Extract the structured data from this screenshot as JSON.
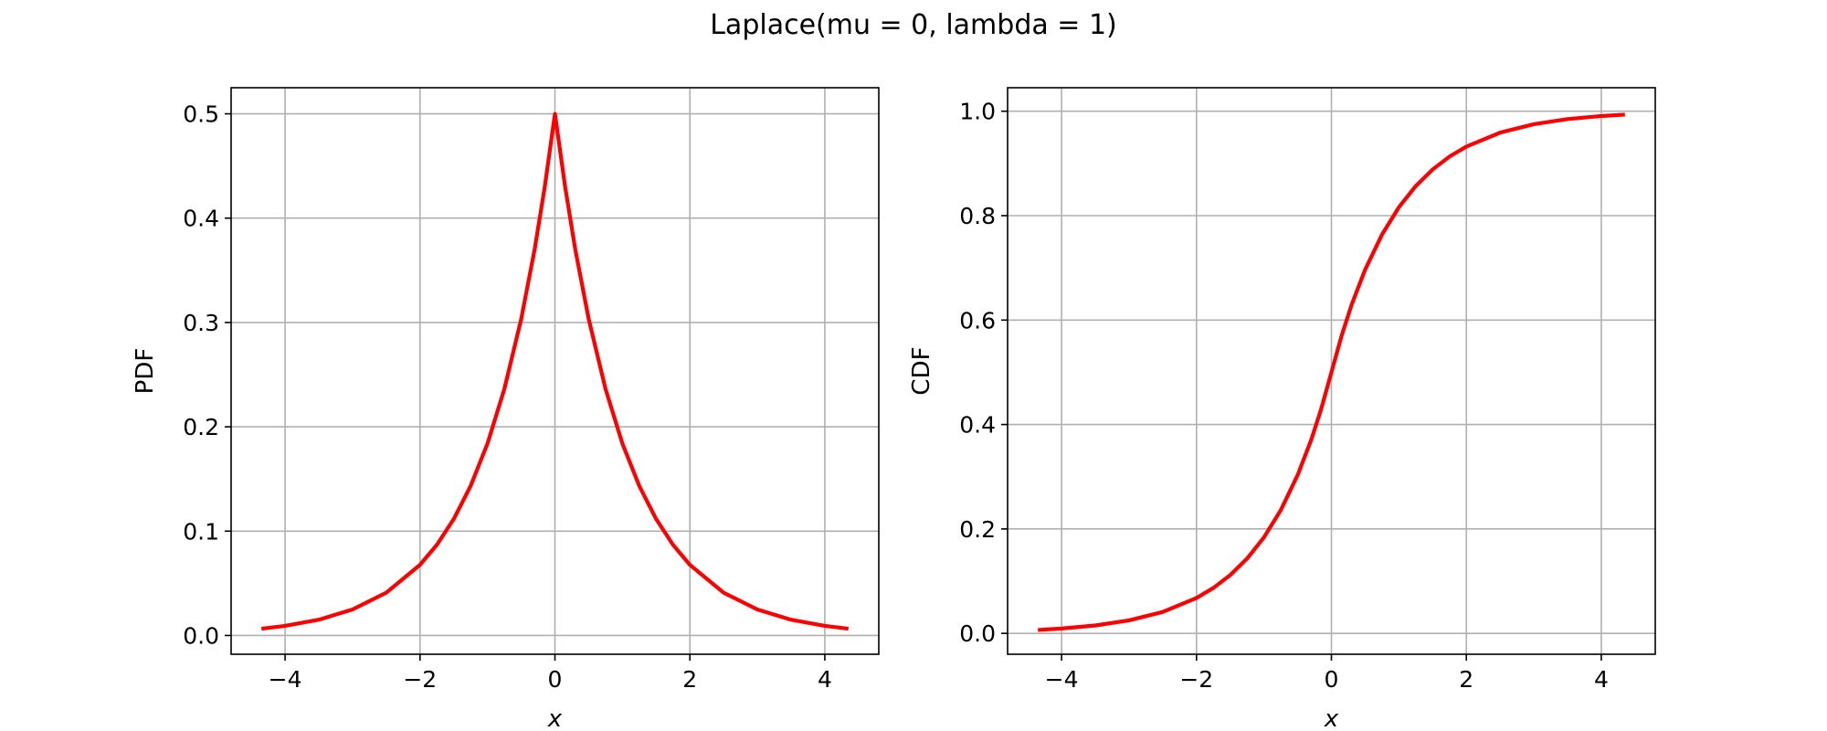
{
  "figure": {
    "suptitle": "Laplace(mu = 0, lambda = 1)"
  },
  "colors": {
    "line": "#ff0000",
    "grid": "#b0b0b0",
    "axes": "#000000",
    "background": "#ffffff"
  },
  "chart_data": [
    {
      "type": "line",
      "title": "",
      "xlabel": "x",
      "ylabel": "PDF",
      "xlim": [
        -4.8,
        4.8
      ],
      "ylim": [
        -0.018,
        0.525
      ],
      "xticks": [
        -4,
        -2,
        0,
        2,
        4
      ],
      "xtick_labels": [
        "−4",
        "−2",
        "0",
        "2",
        "4"
      ],
      "yticks": [
        0.0,
        0.1,
        0.2,
        0.3,
        0.4,
        0.5
      ],
      "ytick_labels": [
        "0.0",
        "0.1",
        "0.2",
        "0.3",
        "0.4",
        "0.5"
      ],
      "grid": true,
      "series": [
        {
          "x": [
            -4.35,
            -4.0,
            -3.5,
            -3.0,
            -2.5,
            -2.0,
            -1.75,
            -1.5,
            -1.25,
            -1.0,
            -0.75,
            -0.5,
            -0.3,
            -0.15,
            0.0,
            0.15,
            0.3,
            0.5,
            0.75,
            1.0,
            1.25,
            1.5,
            1.75,
            2.0,
            2.5,
            3.0,
            3.5,
            4.0,
            4.35
          ],
          "y": [
            0.0065,
            0.0092,
            0.0151,
            0.0249,
            0.041,
            0.0677,
            0.0869,
            0.1116,
            0.1433,
            0.1839,
            0.2362,
            0.3033,
            0.3704,
            0.4304,
            0.5,
            0.4304,
            0.3704,
            0.3033,
            0.2362,
            0.1839,
            0.1433,
            0.1116,
            0.0869,
            0.0677,
            0.041,
            0.0249,
            0.0151,
            0.0092,
            0.0065
          ]
        }
      ]
    },
    {
      "type": "line",
      "title": "",
      "xlabel": "x",
      "ylabel": "CDF",
      "xlim": [
        -4.8,
        4.8
      ],
      "ylim": [
        -0.04,
        1.045
      ],
      "xticks": [
        -4,
        -2,
        0,
        2,
        4
      ],
      "xtick_labels": [
        "−4",
        "−2",
        "0",
        "2",
        "4"
      ],
      "yticks": [
        0.0,
        0.2,
        0.4,
        0.6,
        0.8,
        1.0
      ],
      "ytick_labels": [
        "0.0",
        "0.2",
        "0.4",
        "0.6",
        "0.8",
        "1.0"
      ],
      "grid": true,
      "series": [
        {
          "x": [
            -4.35,
            -4.0,
            -3.5,
            -3.0,
            -2.5,
            -2.0,
            -1.75,
            -1.5,
            -1.25,
            -1.0,
            -0.75,
            -0.5,
            -0.3,
            -0.15,
            0.0,
            0.15,
            0.3,
            0.5,
            0.75,
            1.0,
            1.25,
            1.5,
            1.75,
            2.0,
            2.5,
            3.0,
            3.5,
            4.0,
            4.35
          ],
          "y": [
            0.0065,
            0.0092,
            0.0151,
            0.0249,
            0.041,
            0.0677,
            0.0869,
            0.1116,
            0.1433,
            0.1839,
            0.2362,
            0.3033,
            0.3704,
            0.4304,
            0.5,
            0.5696,
            0.6296,
            0.6967,
            0.7638,
            0.8161,
            0.8567,
            0.8884,
            0.9131,
            0.9323,
            0.959,
            0.9751,
            0.9849,
            0.9908,
            0.9935
          ]
        }
      ]
    }
  ]
}
